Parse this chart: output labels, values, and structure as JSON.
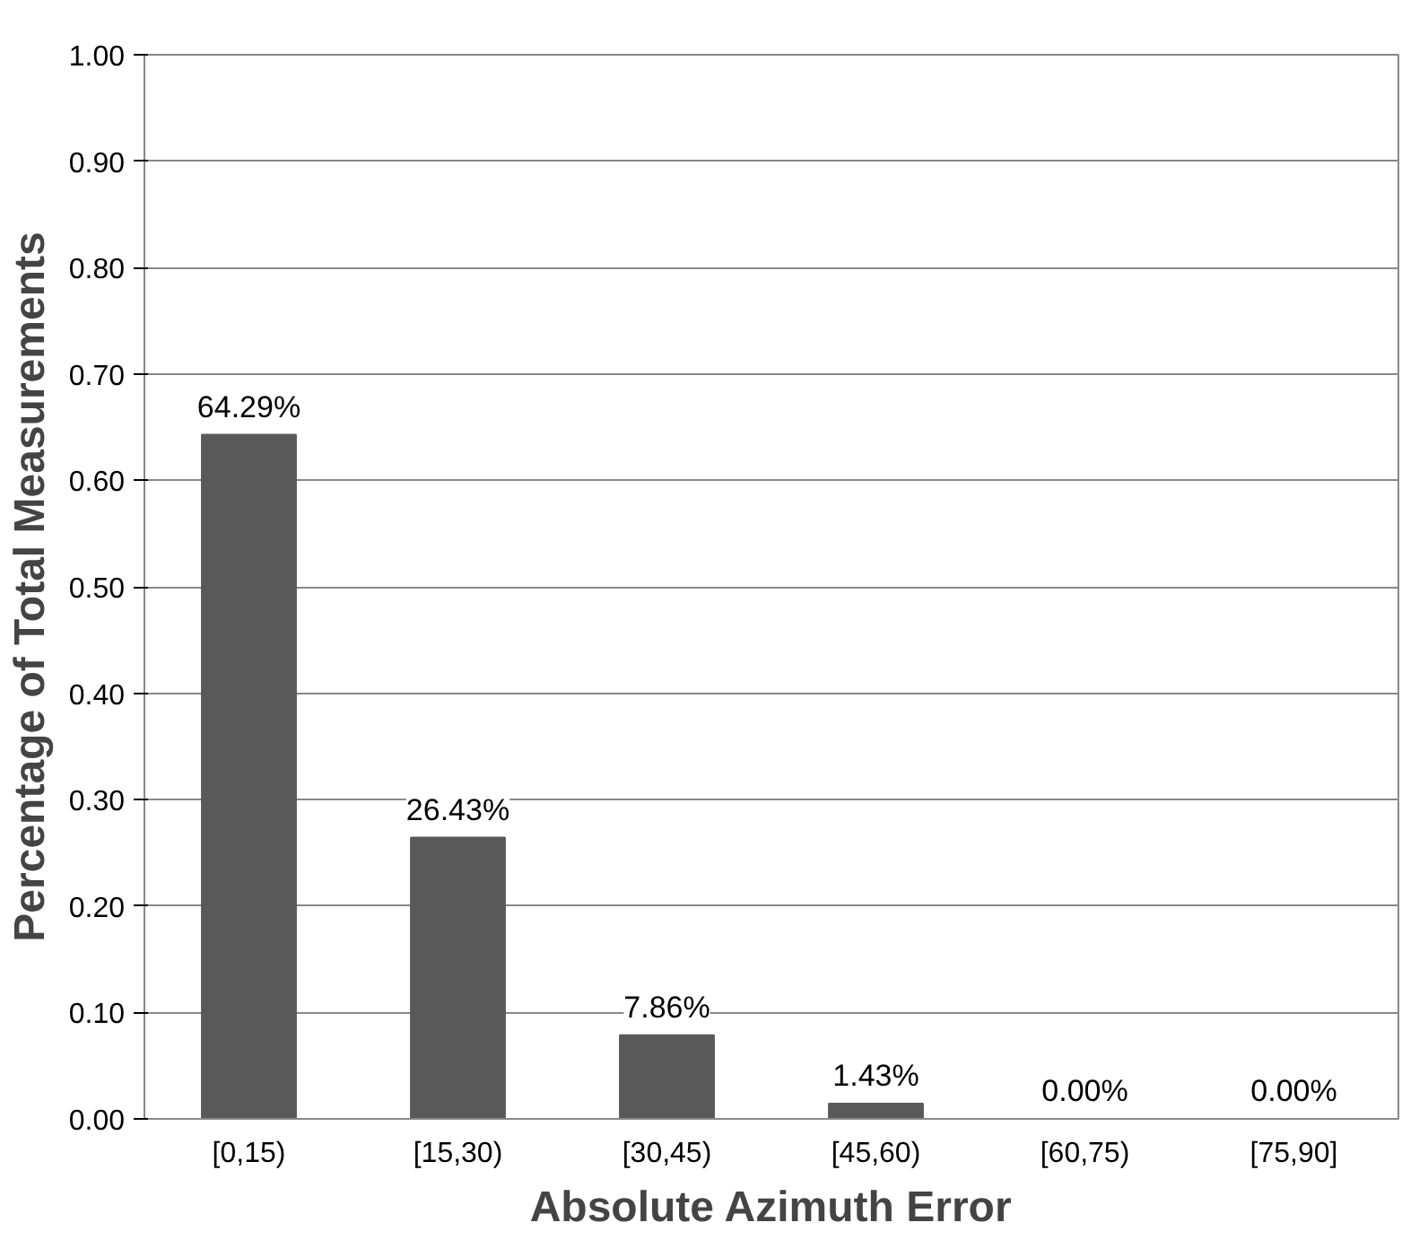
{
  "chart_data": {
    "type": "bar",
    "xlabel": "Absolute Azimuth Error",
    "ylabel": "Percentage of Total Measurements",
    "categories": [
      "[0,15)",
      "[15,30)",
      "[30,45)",
      "[45,60)",
      "[60,75)",
      "[75,90]"
    ],
    "values": [
      0.6429,
      0.2643,
      0.0786,
      0.0143,
      0,
      0
    ],
    "value_labels": [
      "64.29%",
      "26.43%",
      "7.86%",
      "1.43%",
      "0.00%",
      "0.00%"
    ],
    "color": "#595959",
    "ylim": [
      0,
      1
    ],
    "yticks": [
      {
        "value": 0,
        "label": "0.00"
      },
      {
        "value": 0.1,
        "label": "0.10"
      },
      {
        "value": 0.2,
        "label": "0.20"
      },
      {
        "value": 0.3,
        "label": "0.30"
      },
      {
        "value": 0.4,
        "label": "0.40"
      },
      {
        "value": 0.5,
        "label": "0.50"
      },
      {
        "value": 0.6,
        "label": "0.60"
      },
      {
        "value": 0.7,
        "label": "0.70"
      },
      {
        "value": 0.8,
        "label": "0.80"
      },
      {
        "value": 0.9,
        "label": "0.90"
      },
      {
        "value": 1,
        "label": "1.00"
      }
    ],
    "grid": "y"
  }
}
